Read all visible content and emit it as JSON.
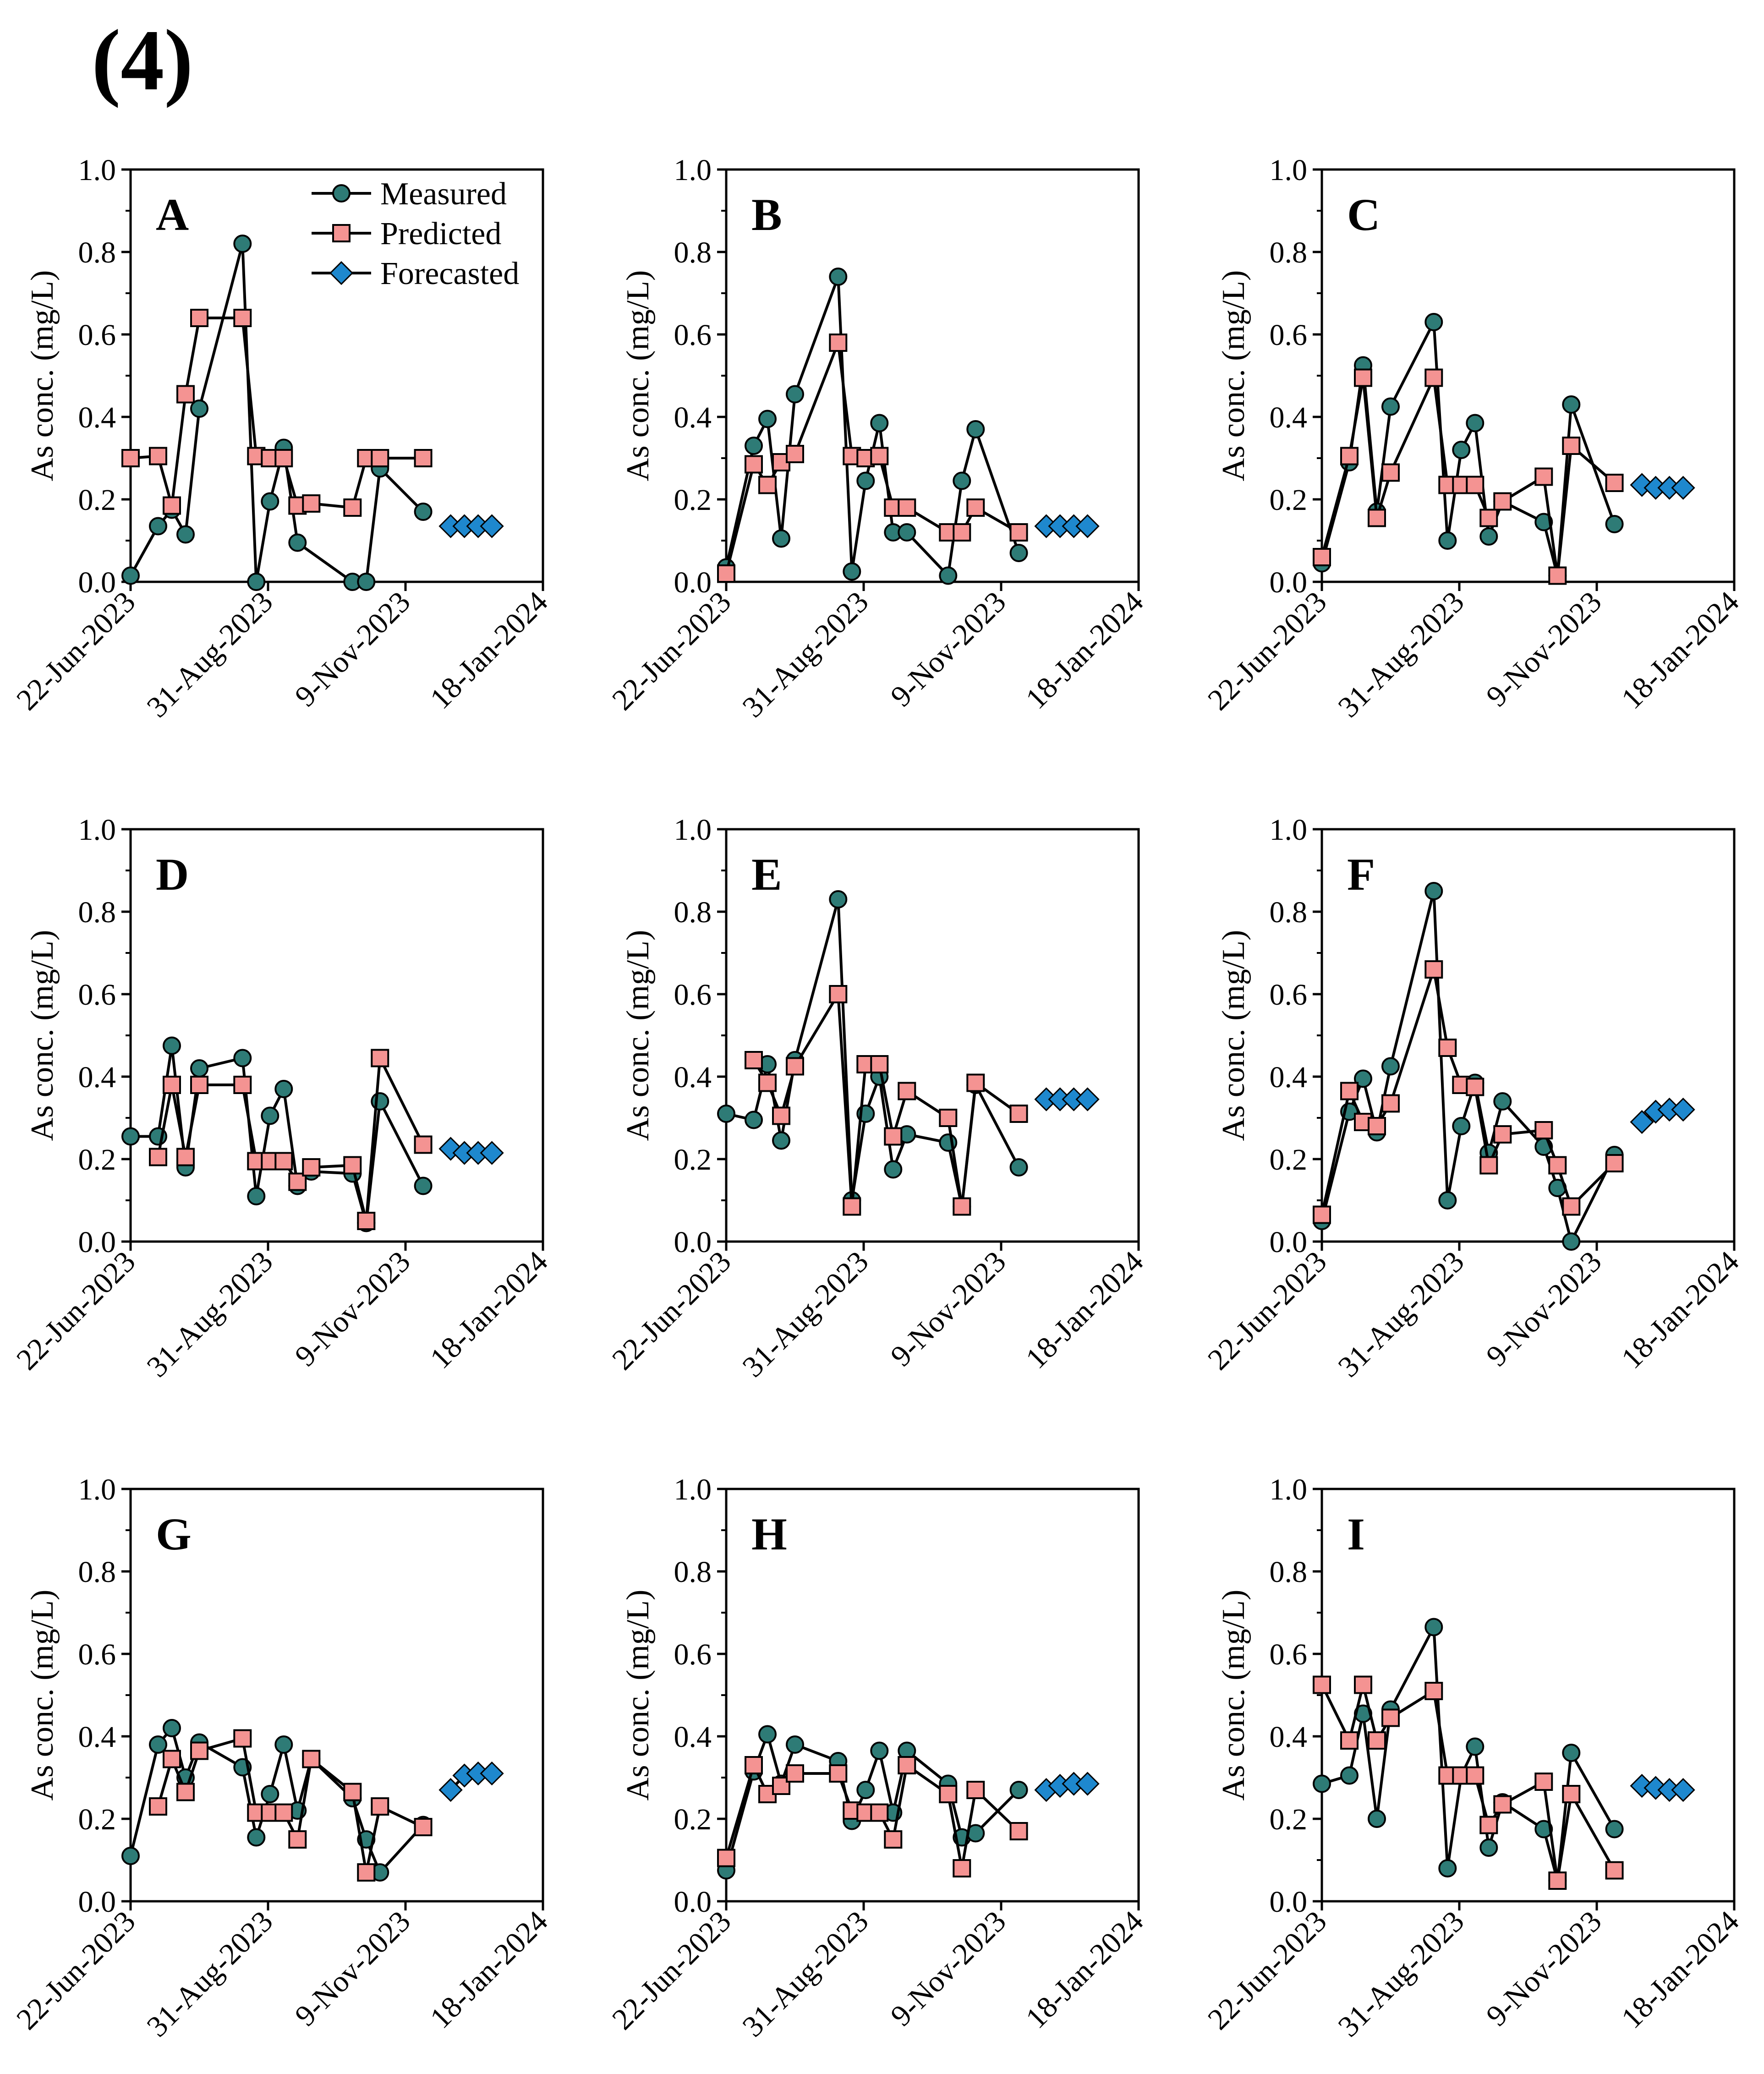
{
  "figure_label": "(4)",
  "colors": {
    "measured_fill": "#2E7B76",
    "predicted_fill": "#F49392",
    "forecasted_fill": "#1E88CE",
    "line": "#000000"
  },
  "legend": [
    "Measured",
    "Predicted",
    "Forecasted"
  ],
  "chart_data": [
    {
      "panel": "A",
      "type": "line",
      "xlabel": "",
      "ylabel": "As conc. (mg/L)",
      "xlim": [
        "22-Jun-2023",
        "18-Jan-2024"
      ],
      "ylim": [
        0,
        1.0
      ],
      "x_ticks": [
        "22-Jun-2023",
        "31-Aug-2023",
        "9-Nov-2023",
        "18-Jan-2024"
      ],
      "y_ticks": [
        "0.0",
        "0.2",
        "0.4",
        "0.6",
        "0.8",
        "1.0"
      ],
      "series": [
        {
          "name": "Measured",
          "x": [
            0,
            14,
            21,
            28,
            35,
            57,
            64,
            71,
            78,
            85,
            113,
            120,
            127,
            149
          ],
          "y": [
            0.015,
            0.135,
            0.175,
            0.115,
            0.42,
            0.82,
            0.0,
            0.195,
            0.325,
            0.095,
            0.0,
            0.0,
            0.275,
            0.17
          ]
        },
        {
          "name": "Predicted",
          "x": [
            0,
            14,
            21,
            28,
            35,
            57,
            64,
            71,
            78,
            85,
            92,
            113,
            120,
            127,
            149
          ],
          "y": [
            0.3,
            0.305,
            0.185,
            0.455,
            0.64,
            0.64,
            0.305,
            0.3,
            0.3,
            0.185,
            0.19,
            0.18,
            0.3,
            0.3,
            0.3
          ]
        },
        {
          "name": "Forecasted",
          "x": [
            163,
            170,
            177,
            184
          ],
          "y": [
            0.135,
            0.135,
            0.135,
            0.135
          ]
        }
      ]
    },
    {
      "panel": "B",
      "type": "line",
      "xlabel": "",
      "ylabel": "As conc. (mg/L)",
      "xlim": [
        "22-Jun-2023",
        "18-Jan-2024"
      ],
      "ylim": [
        0,
        1.0
      ],
      "x_ticks": [
        "22-Jun-2023",
        "31-Aug-2023",
        "9-Nov-2023",
        "18-Jan-2024"
      ],
      "y_ticks": [
        "0.0",
        "0.2",
        "0.4",
        "0.6",
        "0.8",
        "1.0"
      ],
      "series": [
        {
          "name": "Measured",
          "x": [
            0,
            14,
            21,
            28,
            35,
            57,
            64,
            71,
            78,
            85,
            92,
            113,
            120,
            127,
            149
          ],
          "y": [
            0.035,
            0.33,
            0.395,
            0.105,
            0.455,
            0.74,
            0.025,
            0.245,
            0.385,
            0.12,
            0.12,
            0.015,
            0.245,
            0.37,
            0.07
          ]
        },
        {
          "name": "Predicted",
          "x": [
            0,
            14,
            21,
            28,
            35,
            57,
            64,
            71,
            78,
            85,
            92,
            113,
            120,
            127,
            149
          ],
          "y": [
            0.02,
            0.285,
            0.235,
            0.29,
            0.31,
            0.58,
            0.305,
            0.3,
            0.305,
            0.18,
            0.18,
            0.12,
            0.12,
            0.18,
            0.12
          ]
        },
        {
          "name": "Forecasted",
          "x": [
            163,
            170,
            177,
            184
          ],
          "y": [
            0.135,
            0.135,
            0.135,
            0.135
          ]
        }
      ]
    },
    {
      "panel": "C",
      "type": "line",
      "xlabel": "",
      "ylabel": "As conc. (mg/L)",
      "xlim": [
        "22-Jun-2023",
        "18-Jan-2024"
      ],
      "ylim": [
        0,
        1.0
      ],
      "x_ticks": [
        "22-Jun-2023",
        "31-Aug-2023",
        "9-Nov-2023",
        "18-Jan-2024"
      ],
      "y_ticks": [
        "0.0",
        "0.2",
        "0.4",
        "0.6",
        "0.8",
        "1.0"
      ],
      "series": [
        {
          "name": "Measured",
          "x": [
            0,
            14,
            21,
            28,
            35,
            57,
            64,
            71,
            78,
            85,
            92,
            113,
            120,
            127,
            149
          ],
          "y": [
            0.045,
            0.29,
            0.525,
            0.17,
            0.425,
            0.63,
            0.1,
            0.32,
            0.385,
            0.11,
            0.195,
            0.145,
            0.015,
            0.43,
            0.14
          ]
        },
        {
          "name": "Predicted",
          "x": [
            0,
            14,
            21,
            28,
            35,
            57,
            64,
            71,
            78,
            85,
            92,
            113,
            120,
            127,
            149
          ],
          "y": [
            0.06,
            0.305,
            0.495,
            0.155,
            0.265,
            0.495,
            0.235,
            0.235,
            0.235,
            0.155,
            0.195,
            0.255,
            0.015,
            0.33,
            0.24
          ]
        },
        {
          "name": "Forecasted",
          "x": [
            163,
            170,
            177,
            184
          ],
          "y": [
            0.235,
            0.228,
            0.228,
            0.228
          ]
        }
      ]
    },
    {
      "panel": "D",
      "type": "line",
      "xlabel": "",
      "ylabel": "As conc. (mg/L)",
      "xlim": [
        "22-Jun-2023",
        "18-Jan-2024"
      ],
      "ylim": [
        0,
        1.0
      ],
      "x_ticks": [
        "22-Jun-2023",
        "31-Aug-2023",
        "9-Nov-2023",
        "18-Jan-2024"
      ],
      "y_ticks": [
        "0.0",
        "0.2",
        "0.4",
        "0.6",
        "0.8",
        "1.0"
      ],
      "series": [
        {
          "name": "Measured",
          "x": [
            0,
            14,
            21,
            28,
            35,
            57,
            64,
            71,
            78,
            85,
            92,
            113,
            120,
            127,
            149
          ],
          "y": [
            0.255,
            0.255,
            0.475,
            0.18,
            0.42,
            0.445,
            0.11,
            0.305,
            0.37,
            0.135,
            0.17,
            0.165,
            0.045,
            0.34,
            0.135
          ]
        },
        {
          "name": "Predicted",
          "x": [
            14,
            21,
            28,
            35,
            57,
            64,
            71,
            78,
            85,
            92,
            113,
            120,
            127,
            149
          ],
          "y": [
            0.205,
            0.38,
            0.205,
            0.38,
            0.38,
            0.195,
            0.195,
            0.195,
            0.145,
            0.18,
            0.185,
            0.05,
            0.445,
            0.235
          ]
        },
        {
          "name": "Forecasted",
          "x": [
            163,
            170,
            177,
            184
          ],
          "y": [
            0.225,
            0.215,
            0.215,
            0.215
          ]
        }
      ]
    },
    {
      "panel": "E",
      "type": "line",
      "xlabel": "",
      "ylabel": "As conc. (mg/L)",
      "xlim": [
        "22-Jun-2023",
        "18-Jan-2024"
      ],
      "ylim": [
        0,
        1.0
      ],
      "x_ticks": [
        "22-Jun-2023",
        "31-Aug-2023",
        "9-Nov-2023",
        "18-Jan-2024"
      ],
      "y_ticks": [
        "0.0",
        "0.2",
        "0.4",
        "0.6",
        "0.8",
        "1.0"
      ],
      "series": [
        {
          "name": "Measured",
          "x": [
            0,
            14,
            21,
            28,
            35,
            57,
            64,
            71,
            78,
            85,
            92,
            113,
            120,
            127,
            149
          ],
          "y": [
            0.31,
            0.295,
            0.43,
            0.245,
            0.44,
            0.83,
            0.1,
            0.31,
            0.4,
            0.175,
            0.26,
            0.24,
            0.085,
            0.38,
            0.18
          ]
        },
        {
          "name": "Predicted",
          "x": [
            14,
            21,
            28,
            35,
            57,
            64,
            71,
            78,
            85,
            92,
            113,
            120,
            127,
            149
          ],
          "y": [
            0.44,
            0.385,
            0.305,
            0.425,
            0.6,
            0.085,
            0.43,
            0.43,
            0.255,
            0.365,
            0.3,
            0.085,
            0.385,
            0.31
          ]
        },
        {
          "name": "Forecasted",
          "x": [
            163,
            170,
            177,
            184
          ],
          "y": [
            0.345,
            0.345,
            0.345,
            0.345
          ]
        }
      ]
    },
    {
      "panel": "F",
      "type": "line",
      "xlabel": "",
      "ylabel": "As conc. (mg/L)",
      "xlim": [
        "22-Jun-2023",
        "18-Jan-2024"
      ],
      "ylim": [
        0,
        1.0
      ],
      "x_ticks": [
        "22-Jun-2023",
        "31-Aug-2023",
        "9-Nov-2023",
        "18-Jan-2024"
      ],
      "y_ticks": [
        "0.0",
        "0.2",
        "0.4",
        "0.6",
        "0.8",
        "1.0"
      ],
      "series": [
        {
          "name": "Measured",
          "x": [
            0,
            14,
            21,
            28,
            35,
            57,
            64,
            71,
            78,
            85,
            92,
            113,
            120,
            127,
            149
          ],
          "y": [
            0.05,
            0.315,
            0.395,
            0.265,
            0.425,
            0.85,
            0.1,
            0.28,
            0.385,
            0.215,
            0.34,
            0.23,
            0.13,
            0.0,
            0.21
          ]
        },
        {
          "name": "Predicted",
          "x": [
            0,
            14,
            21,
            28,
            35,
            57,
            64,
            71,
            78,
            85,
            92,
            113,
            120,
            127,
            149
          ],
          "y": [
            0.065,
            0.365,
            0.29,
            0.28,
            0.335,
            0.66,
            0.47,
            0.38,
            0.375,
            0.185,
            0.26,
            0.27,
            0.185,
            0.085,
            0.19
          ]
        },
        {
          "name": "Forecasted",
          "x": [
            163,
            170,
            177,
            184
          ],
          "y": [
            0.29,
            0.315,
            0.32,
            0.32
          ]
        }
      ]
    },
    {
      "panel": "G",
      "type": "line",
      "xlabel": "",
      "ylabel": "As conc. (mg/L)",
      "xlim": [
        "22-Jun-2023",
        "18-Jan-2024"
      ],
      "ylim": [
        0,
        1.0
      ],
      "x_ticks": [
        "22-Jun-2023",
        "31-Aug-2023",
        "9-Nov-2023",
        "18-Jan-2024"
      ],
      "y_ticks": [
        "0.0",
        "0.2",
        "0.4",
        "0.6",
        "0.8",
        "1.0"
      ],
      "series": [
        {
          "name": "Measured",
          "x": [
            0,
            14,
            21,
            28,
            35,
            57,
            64,
            71,
            78,
            85,
            92,
            113,
            120,
            127,
            149
          ],
          "y": [
            0.11,
            0.38,
            0.42,
            0.3,
            0.385,
            0.325,
            0.155,
            0.26,
            0.38,
            0.22,
            0.345,
            0.25,
            0.15,
            0.07,
            0.185
          ]
        },
        {
          "name": "Predicted",
          "x": [
            14,
            21,
            28,
            35,
            57,
            64,
            71,
            78,
            85,
            92,
            113,
            120,
            127,
            149
          ],
          "y": [
            0.23,
            0.345,
            0.265,
            0.365,
            0.395,
            0.215,
            0.215,
            0.215,
            0.15,
            0.345,
            0.265,
            0.07,
            0.23,
            0.18
          ]
        },
        {
          "name": "Forecasted",
          "x": [
            163,
            170,
            177,
            184
          ],
          "y": [
            0.27,
            0.305,
            0.31,
            0.31
          ]
        }
      ]
    },
    {
      "panel": "H",
      "type": "line",
      "xlabel": "",
      "ylabel": "As conc. (mg/L)",
      "xlim": [
        "22-Jun-2023",
        "18-Jan-2024"
      ],
      "ylim": [
        0,
        1.0
      ],
      "x_ticks": [
        "22-Jun-2023",
        "31-Aug-2023",
        "9-Nov-2023",
        "18-Jan-2024"
      ],
      "y_ticks": [
        "0.0",
        "0.2",
        "0.4",
        "0.6",
        "0.8",
        "1.0"
      ],
      "series": [
        {
          "name": "Measured",
          "x": [
            0,
            14,
            21,
            28,
            35,
            57,
            64,
            71,
            78,
            85,
            92,
            113,
            120,
            127,
            149
          ],
          "y": [
            0.075,
            0.315,
            0.405,
            0.285,
            0.38,
            0.34,
            0.195,
            0.27,
            0.365,
            0.215,
            0.365,
            0.285,
            0.155,
            0.165,
            0.27
          ]
        },
        {
          "name": "Predicted",
          "x": [
            0,
            14,
            21,
            28,
            35,
            57,
            64,
            71,
            78,
            85,
            92,
            113,
            120,
            127,
            149
          ],
          "y": [
            0.105,
            0.33,
            0.26,
            0.28,
            0.31,
            0.31,
            0.22,
            0.215,
            0.215,
            0.15,
            0.33,
            0.26,
            0.08,
            0.27,
            0.17
          ]
        },
        {
          "name": "Forecasted",
          "x": [
            163,
            170,
            177,
            184
          ],
          "y": [
            0.27,
            0.28,
            0.285,
            0.285
          ]
        }
      ]
    },
    {
      "panel": "I",
      "type": "line",
      "xlabel": "",
      "ylabel": "As conc. (mg/L)",
      "xlim": [
        "22-Jun-2023",
        "18-Jan-2024"
      ],
      "ylim": [
        0,
        1.0
      ],
      "x_ticks": [
        "22-Jun-2023",
        "31-Aug-2023",
        "9-Nov-2023",
        "18-Jan-2024"
      ],
      "y_ticks": [
        "0.0",
        "0.2",
        "0.4",
        "0.6",
        "0.8",
        "1.0"
      ],
      "series": [
        {
          "name": "Measured",
          "x": [
            0,
            14,
            21,
            28,
            35,
            57,
            64,
            71,
            78,
            85,
            92,
            113,
            120,
            127,
            149
          ],
          "y": [
            0.285,
            0.305,
            0.455,
            0.2,
            0.465,
            0.665,
            0.08,
            0.305,
            0.375,
            0.13,
            0.24,
            0.175,
            0.05,
            0.36,
            0.175
          ]
        },
        {
          "name": "Predicted",
          "x": [
            0,
            14,
            21,
            28,
            35,
            57,
            64,
            71,
            78,
            85,
            92,
            113,
            120,
            127,
            149
          ],
          "y": [
            0.525,
            0.39,
            0.525,
            0.39,
            0.445,
            0.51,
            0.305,
            0.305,
            0.305,
            0.185,
            0.235,
            0.29,
            0.05,
            0.26,
            0.075
          ]
        },
        {
          "name": "Forecasted",
          "x": [
            163,
            170,
            177,
            184
          ],
          "y": [
            0.28,
            0.275,
            0.27,
            0.27
          ]
        }
      ]
    }
  ]
}
